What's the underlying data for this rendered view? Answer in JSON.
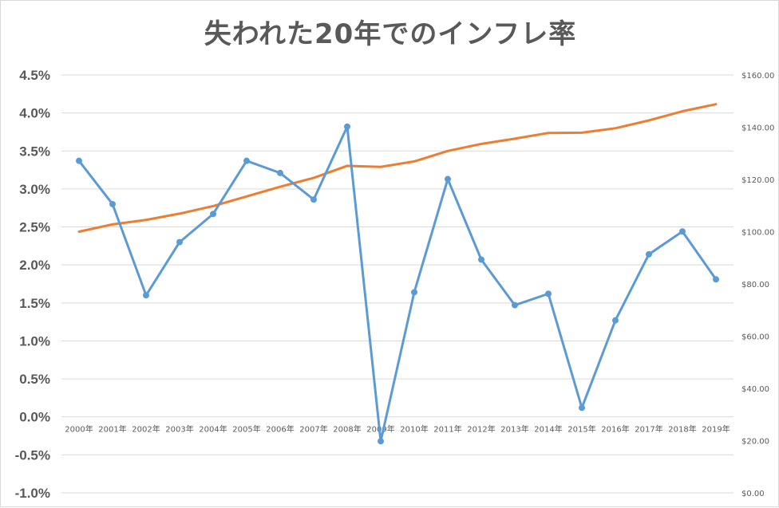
{
  "chart_data": {
    "type": "line",
    "title": "失われた20年でのインフレ率",
    "categories": [
      "2000年",
      "2001年",
      "2002年",
      "2003年",
      "2004年",
      "2005年",
      "2006年",
      "2007年",
      "2008年",
      "2009年",
      "2010年",
      "2011年",
      "2012年",
      "2013年",
      "2014年",
      "2015年",
      "2016年",
      "2017年",
      "2018年",
      "2019年"
    ],
    "series": [
      {
        "axis": "left",
        "color": "#5b9bd5",
        "markers": true,
        "values": [
          3.37,
          2.8,
          1.6,
          2.3,
          2.67,
          3.37,
          3.21,
          2.86,
          3.82,
          -0.32,
          1.64,
          3.13,
          2.07,
          1.47,
          1.62,
          0.12,
          1.27,
          2.14,
          2.44,
          1.81
        ]
      },
      {
        "axis": "right",
        "color": "#ed7d31",
        "markers": false,
        "values": [
          100.0,
          102.8,
          104.5,
          106.9,
          109.8,
          113.5,
          117.2,
          120.6,
          125.2,
          124.8,
          126.9,
          130.9,
          133.6,
          135.6,
          137.8,
          137.9,
          139.6,
          142.6,
          146.1,
          148.8
        ]
      }
    ],
    "y_left": {
      "ylim": [
        -1.0,
        4.5
      ],
      "ticks": [
        "4.5%",
        "4.0%",
        "3.5%",
        "3.0%",
        "2.5%",
        "2.0%",
        "1.5%",
        "1.0%",
        "0.5%",
        "0.0%",
        "-0.5%",
        "-1.0%"
      ],
      "tick_values": [
        4.5,
        4.0,
        3.5,
        3.0,
        2.5,
        2.0,
        1.5,
        1.0,
        0.5,
        0.0,
        -0.5,
        -1.0
      ]
    },
    "y_right": {
      "ylim": [
        0,
        160
      ],
      "ticks": [
        "$160.00",
        "$140.00",
        "$120.00",
        "$100.00",
        "$80.00",
        "$60.00",
        "$40.00",
        "$20.00",
        "$0.00"
      ],
      "tick_values": [
        160,
        140,
        120,
        100,
        80,
        60,
        40,
        20,
        0
      ]
    },
    "grid": true,
    "legend": "none"
  }
}
